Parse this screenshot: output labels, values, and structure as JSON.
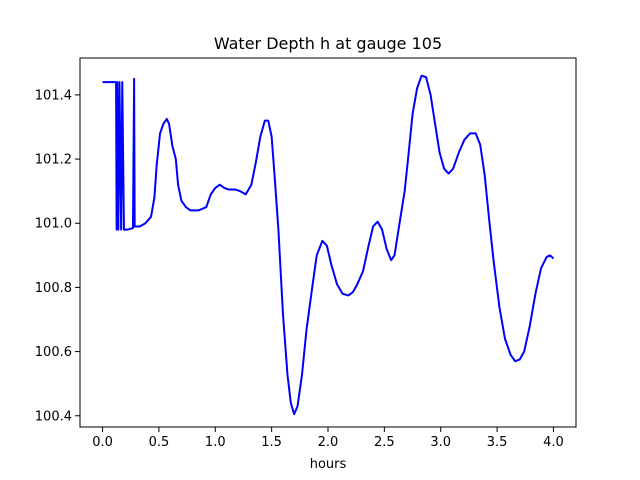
{
  "chart_data": {
    "type": "line",
    "title": "Water Depth h at gauge 105",
    "xlabel": "hours",
    "ylabel": "",
    "xlim": [
      -0.2,
      4.2
    ],
    "ylim": [
      100.365,
      101.515
    ],
    "xticks": [
      0.0,
      0.5,
      1.0,
      1.5,
      2.0,
      2.5,
      3.0,
      3.5,
      4.0
    ],
    "xtick_labels": [
      "0.0",
      "0.5",
      "1.0",
      "1.5",
      "2.0",
      "2.5",
      "3.0",
      "3.5",
      "4.0"
    ],
    "yticks": [
      100.4,
      100.6,
      100.8,
      101.0,
      101.2,
      101.4
    ],
    "ytick_labels": [
      "100.4",
      "100.6",
      "100.8",
      "101.0",
      "101.2",
      "101.4"
    ],
    "grid": false,
    "color": "#0000ff",
    "series": [
      {
        "values": [
          [
            0.0,
            101.44
          ],
          [
            0.12,
            101.44
          ],
          [
            0.125,
            100.98
          ],
          [
            0.13,
            101.44
          ],
          [
            0.14,
            100.98
          ],
          [
            0.15,
            101.44
          ],
          [
            0.165,
            100.98
          ],
          [
            0.175,
            101.44
          ],
          [
            0.19,
            100.98
          ],
          [
            0.22,
            100.98
          ],
          [
            0.27,
            100.985
          ],
          [
            0.28,
            101.45
          ],
          [
            0.285,
            100.99
          ],
          [
            0.33,
            100.99
          ],
          [
            0.38,
            101.0
          ],
          [
            0.43,
            101.02
          ],
          [
            0.46,
            101.08
          ],
          [
            0.48,
            101.18
          ],
          [
            0.51,
            101.28
          ],
          [
            0.54,
            101.31
          ],
          [
            0.57,
            101.325
          ],
          [
            0.59,
            101.31
          ],
          [
            0.62,
            101.24
          ],
          [
            0.65,
            101.2
          ],
          [
            0.67,
            101.12
          ],
          [
            0.7,
            101.07
          ],
          [
            0.74,
            101.05
          ],
          [
            0.78,
            101.04
          ],
          [
            0.85,
            101.04
          ],
          [
            0.92,
            101.05
          ],
          [
            0.96,
            101.09
          ],
          [
            1.0,
            101.11
          ],
          [
            1.04,
            101.12
          ],
          [
            1.08,
            101.11
          ],
          [
            1.12,
            101.105
          ],
          [
            1.18,
            101.105
          ],
          [
            1.22,
            101.1
          ],
          [
            1.27,
            101.09
          ],
          [
            1.32,
            101.12
          ],
          [
            1.36,
            101.19
          ],
          [
            1.4,
            101.27
          ],
          [
            1.44,
            101.32
          ],
          [
            1.47,
            101.32
          ],
          [
            1.5,
            101.27
          ],
          [
            1.53,
            101.13
          ],
          [
            1.56,
            100.98
          ],
          [
            1.6,
            100.72
          ],
          [
            1.64,
            100.53
          ],
          [
            1.67,
            100.44
          ],
          [
            1.7,
            100.405
          ],
          [
            1.73,
            100.43
          ],
          [
            1.77,
            100.53
          ],
          [
            1.81,
            100.67
          ],
          [
            1.86,
            100.8
          ],
          [
            1.9,
            100.9
          ],
          [
            1.95,
            100.945
          ],
          [
            1.99,
            100.93
          ],
          [
            2.03,
            100.87
          ],
          [
            2.08,
            100.81
          ],
          [
            2.13,
            100.78
          ],
          [
            2.18,
            100.775
          ],
          [
            2.22,
            100.785
          ],
          [
            2.26,
            100.81
          ],
          [
            2.31,
            100.85
          ],
          [
            2.36,
            100.93
          ],
          [
            2.4,
            100.99
          ],
          [
            2.44,
            101.005
          ],
          [
            2.48,
            100.98
          ],
          [
            2.52,
            100.92
          ],
          [
            2.56,
            100.885
          ],
          [
            2.59,
            100.9
          ],
          [
            2.63,
            100.99
          ],
          [
            2.68,
            101.1
          ],
          [
            2.71,
            101.2
          ],
          [
            2.75,
            101.34
          ],
          [
            2.79,
            101.42
          ],
          [
            2.83,
            101.46
          ],
          [
            2.87,
            101.455
          ],
          [
            2.91,
            101.4
          ],
          [
            2.95,
            101.31
          ],
          [
            2.99,
            101.22
          ],
          [
            3.03,
            101.17
          ],
          [
            3.07,
            101.155
          ],
          [
            3.11,
            101.17
          ],
          [
            3.16,
            101.22
          ],
          [
            3.21,
            101.26
          ],
          [
            3.26,
            101.28
          ],
          [
            3.31,
            101.28
          ],
          [
            3.35,
            101.245
          ],
          [
            3.39,
            101.15
          ],
          [
            3.43,
            101.01
          ],
          [
            3.47,
            100.88
          ],
          [
            3.52,
            100.74
          ],
          [
            3.57,
            100.64
          ],
          [
            3.62,
            100.59
          ],
          [
            3.66,
            100.57
          ],
          [
            3.7,
            100.575
          ],
          [
            3.74,
            100.6
          ],
          [
            3.79,
            100.68
          ],
          [
            3.84,
            100.78
          ],
          [
            3.89,
            100.86
          ],
          [
            3.94,
            100.895
          ],
          [
            3.97,
            100.9
          ],
          [
            4.0,
            100.89
          ]
        ]
      }
    ]
  }
}
